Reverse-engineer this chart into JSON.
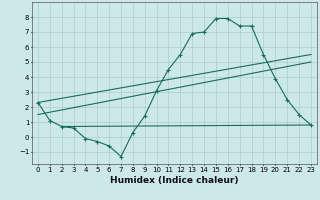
{
  "xlabel": "Humidex (Indice chaleur)",
  "bg_color": "#cce8e8",
  "grid_color": "#aacece",
  "line_color": "#1a6b5a",
  "ylim": [
    -1.8,
    9.0
  ],
  "xlim": [
    -0.5,
    23.5
  ],
  "yticks": [
    -1,
    0,
    1,
    2,
    3,
    4,
    5,
    6,
    7,
    8
  ],
  "xticks": [
    0,
    1,
    2,
    3,
    4,
    5,
    6,
    7,
    8,
    9,
    10,
    11,
    12,
    13,
    14,
    15,
    16,
    17,
    18,
    19,
    20,
    21,
    22,
    23
  ],
  "series1_x": [
    0,
    1,
    2,
    3,
    4,
    5,
    6,
    7,
    8,
    9,
    10,
    11,
    12,
    13,
    14,
    15,
    16,
    17,
    18,
    19,
    20,
    21,
    22,
    23
  ],
  "series1_y": [
    2.3,
    1.1,
    0.7,
    0.6,
    -0.1,
    -0.3,
    -0.6,
    -1.3,
    0.3,
    1.4,
    3.1,
    4.5,
    5.5,
    6.9,
    7.0,
    7.9,
    7.9,
    7.4,
    7.4,
    5.5,
    3.9,
    2.5,
    1.5,
    0.8
  ],
  "series2_x": [
    0,
    23
  ],
  "series2_y": [
    2.3,
    5.5
  ],
  "series3_x": [
    0,
    23
  ],
  "series3_y": [
    1.5,
    5.0
  ],
  "series4_x": [
    2,
    23
  ],
  "series4_y": [
    0.7,
    0.8
  ]
}
